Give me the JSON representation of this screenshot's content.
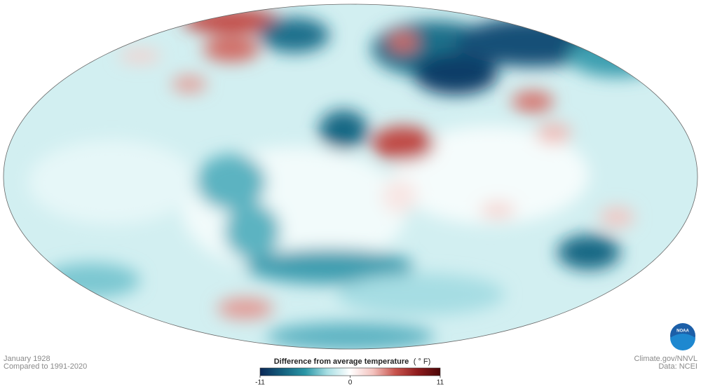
{
  "date": "January 1928",
  "baseline": "Compared to 1991-2020",
  "credit": "Climate.gov/NNVL",
  "source": "Data: NCEI",
  "logo": "NOAA",
  "legend": {
    "title": "Difference from average temperature",
    "unit": "( ° F)",
    "range": [
      -11,
      11
    ],
    "ticks": [
      -11,
      0,
      11
    ],
    "colors": [
      "#0b2857",
      "#15607e",
      "#2a96a6",
      "#a9dfe4",
      "#ffffff",
      "#f4c4c0",
      "#c8544d",
      "#8e1b1d",
      "#4d0708"
    ]
  }
}
